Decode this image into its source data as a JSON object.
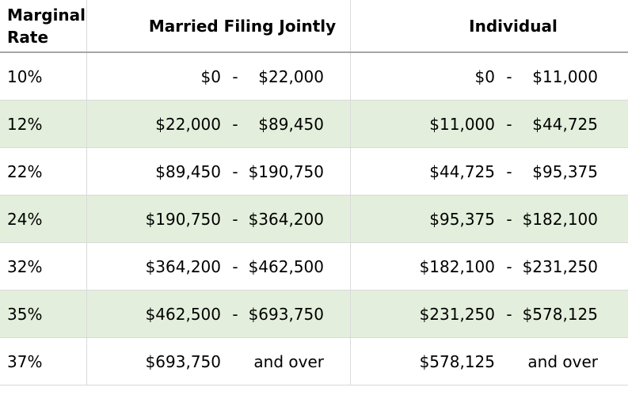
{
  "colors": {
    "row_shaded_bg": "#e3efdc",
    "grid_line": "#d9d9d9",
    "header_rule": "#a6a6a6",
    "text": "#000000",
    "background": "#ffffff"
  },
  "table": {
    "headers": {
      "rate": "Marginal Rate",
      "married": "Married Filing Jointly",
      "individual": "Individual"
    },
    "rows": [
      {
        "rate": "10%",
        "shaded": false,
        "married": {
          "low": "$0",
          "sep": "-",
          "high": "$22,000"
        },
        "individual": {
          "low": "$0",
          "sep": "-",
          "high": "$11,000"
        }
      },
      {
        "rate": "12%",
        "shaded": true,
        "married": {
          "low": "$22,000",
          "sep": "-",
          "high": "$89,450"
        },
        "individual": {
          "low": "$11,000",
          "sep": "-",
          "high": "$44,725"
        }
      },
      {
        "rate": "22%",
        "shaded": false,
        "married": {
          "low": "$89,450",
          "sep": "-",
          "high": "$190,750"
        },
        "individual": {
          "low": "$44,725",
          "sep": "-",
          "high": "$95,375"
        }
      },
      {
        "rate": "24%",
        "shaded": true,
        "married": {
          "low": "$190,750",
          "sep": "-",
          "high": "$364,200"
        },
        "individual": {
          "low": "$95,375",
          "sep": "-",
          "high": "$182,100"
        }
      },
      {
        "rate": "32%",
        "shaded": false,
        "married": {
          "low": "$364,200",
          "sep": "-",
          "high": "$462,500"
        },
        "individual": {
          "low": "$182,100",
          "sep": "-",
          "high": "$231,250"
        }
      },
      {
        "rate": "35%",
        "shaded": true,
        "married": {
          "low": "$462,500",
          "sep": "-",
          "high": "$693,750"
        },
        "individual": {
          "low": "$231,250",
          "sep": "-",
          "high": "$578,125"
        }
      },
      {
        "rate": "37%",
        "shaded": false,
        "married": {
          "low": "$693,750",
          "sep": "",
          "high": "and over"
        },
        "individual": {
          "low": "$578,125",
          "sep": "",
          "high": "and over"
        }
      }
    ]
  },
  "chart_data": {
    "type": "table",
    "title": "",
    "columns": [
      "Marginal Rate",
      "Married Filing Jointly",
      "Individual"
    ],
    "rows": [
      [
        "10%",
        "$0 - $22,000",
        "$0 - $11,000"
      ],
      [
        "12%",
        "$22,000 - $89,450",
        "$11,000 - $44,725"
      ],
      [
        "22%",
        "$89,450 - $190,750",
        "$44,725 - $95,375"
      ],
      [
        "24%",
        "$190,750 - $364,200",
        "$95,375 - $182,100"
      ],
      [
        "32%",
        "$364,200 - $462,500",
        "$182,100 - $231,250"
      ],
      [
        "35%",
        "$462,500 - $693,750",
        "$231,250 - $578,125"
      ],
      [
        "37%",
        "$693,750 and over",
        "$578,125 and over"
      ]
    ]
  }
}
